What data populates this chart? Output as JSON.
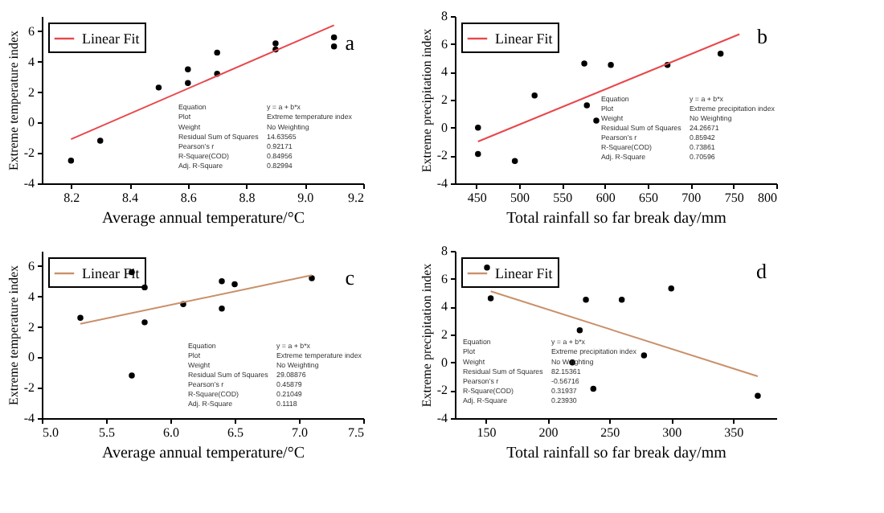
{
  "chart_data": [
    {
      "type": "scatter",
      "title": "a",
      "xlabel": "Average annual temperature/°C",
      "ylabel": "Extreme temperature index",
      "xlim": [
        8.1,
        9.2
      ],
      "xticks": [
        8.2,
        8.4,
        8.6,
        8.8,
        {
          "value": 9,
          "label": "9.0"
        },
        9.2
      ],
      "ylim": [
        -4,
        7
      ],
      "yticks": [
        -4,
        -2,
        0,
        2,
        4,
        6
      ],
      "grid": false,
      "legend": "top left",
      "series": [
        {
          "marker": "circle",
          "color": "#000000",
          "x": [
            8.2,
            8.3,
            8.5,
            8.6,
            8.6,
            8.7,
            8.7,
            8.9,
            8.9,
            9.1,
            9.1
          ],
          "values": [
            -2.5,
            -1.2,
            2.3,
            3.5,
            2.6,
            4.6,
            3.2,
            5.2,
            4.8,
            5.6,
            5.0
          ]
        },
        {
          "type": "line",
          "marker": "none",
          "name": "Linear Fit",
          "color": "#e8474c",
          "x": [
            8.2,
            9.1
          ],
          "values": [
            -1.1,
            6.4
          ]
        }
      ],
      "annotations": [
        "Equation",
        "y = a + b*x",
        "Plot",
        "Extreme temperature index",
        "Weight",
        "No Weighting",
        "Residual Sum of Squares",
        "14.63565",
        "Pearson's r",
        "0.92171",
        "R-Square(COD)",
        "0.84956",
        "Adj. R-Square",
        "0.82994"
      ]
    },
    {
      "type": "scatter",
      "title": "b",
      "xlabel": "Total rainfall so far break day/mm",
      "ylabel": "Extreme precipitation index",
      "xlim": [
        425,
        800
      ],
      "xticks": [
        450,
        500,
        550,
        600,
        650,
        700,
        750,
        800
      ],
      "ylim": [
        -4,
        8
      ],
      "yticks": [
        -4,
        -2,
        0,
        2,
        4,
        6,
        8
      ],
      "grid": false,
      "legend": "top left",
      "series": [
        {
          "marker": "circle",
          "color": "#000000",
          "x": [
            452,
            452,
            495,
            518,
            576,
            579,
            590,
            607,
            673,
            735
          ],
          "values": [
            0,
            -1.9,
            -2.4,
            2.3,
            4.6,
            1.6,
            0.5,
            4.5,
            4.5,
            5.3
          ]
        },
        {
          "type": "line",
          "marker": "none",
          "name": "Linear Fit",
          "color": "#e8474c",
          "x": [
            452,
            757
          ],
          "values": [
            -1.0,
            6.7
          ]
        }
      ],
      "annotations": [
        "Equation",
        "y = a + b*x",
        "Plot",
        "Extreme precipitation index",
        "Weight",
        "No Weighting",
        "Residual Sum of Squares",
        "24.26671",
        "Pearson's r",
        "0.85942",
        "R-Square(COD)",
        "0.73861",
        "Adj. R-Square",
        "0.70596"
      ]
    },
    {
      "type": "scatter",
      "title": "c",
      "xlabel": "Average annual temperature/°C",
      "ylabel": "Extreme temperature index",
      "xlim": [
        5.0,
        7.5
      ],
      "xticks": [
        {
          "value": 5,
          "label": "5.0"
        },
        5.5,
        {
          "value": 6,
          "label": "6.0"
        },
        6.5,
        {
          "value": 7,
          "label": "7.0"
        },
        7.5
      ],
      "ylim": [
        -4,
        7
      ],
      "yticks": [
        -4,
        -2,
        0,
        2,
        4,
        6
      ],
      "grid": false,
      "legend": "top left",
      "series": [
        {
          "marker": "circle",
          "color": "#000000",
          "x": [
            5.3,
            5.7,
            5.8,
            5.8,
            5.7,
            6.1,
            6.4,
            6.5,
            6.4,
            7.1
          ],
          "values": [
            2.6,
            5.6,
            4.6,
            2.3,
            -1.2,
            3.5,
            5.0,
            4.8,
            3.2,
            5.2
          ]
        },
        {
          "type": "line",
          "marker": "none",
          "name": "Linear Fit",
          "color": "#c9906a",
          "x": [
            5.3,
            7.1
          ],
          "values": [
            2.2,
            5.4
          ]
        }
      ],
      "annotations": [
        "Equation",
        "y = a + b*x",
        "Plot",
        "Extreme temperature index",
        "Weight",
        "No Weighting",
        "Residual Sum of Squares",
        "29.08876",
        "Pearson's r",
        "0.45879",
        "R-Square(COD)",
        "0.21049",
        "Adj. R-Square",
        "0.1118"
      ]
    },
    {
      "type": "scatter",
      "title": "d",
      "xlabel": "Total rainfall so far break day/mm",
      "ylabel": "Extreme precipitation index",
      "xlim": [
        125,
        385
      ],
      "xticks": [
        150,
        200,
        250,
        300,
        350
      ],
      "ylim": [
        -4,
        8
      ],
      "yticks": [
        -4,
        -2,
        0,
        2,
        4,
        6,
        8
      ],
      "grid": false,
      "legend": "top left",
      "series": [
        {
          "marker": "circle",
          "color": "#000000",
          "x": [
            151,
            154,
            220,
            226,
            231,
            237,
            260,
            278,
            300,
            370
          ],
          "values": [
            6.8,
            4.6,
            0,
            2.3,
            4.5,
            -1.9,
            4.5,
            0.5,
            5.3,
            -2.4
          ]
        },
        {
          "type": "line",
          "marker": "none",
          "name": "Linear Fit",
          "color": "#c9906a",
          "x": [
            154,
            370
          ],
          "values": [
            5.1,
            -1.0
          ]
        }
      ],
      "annotations": [
        "Equation",
        "y = a + b*x",
        "Plot",
        "Extreme precipitation index",
        "Weight",
        "No Weighting",
        "Residual Sum of Squares",
        "82.15361",
        "Pearson's r",
        "-0.56716",
        "R-Square(COD)",
        "0.31937",
        "Adj. R-Square",
        "0.23930"
      ]
    }
  ]
}
